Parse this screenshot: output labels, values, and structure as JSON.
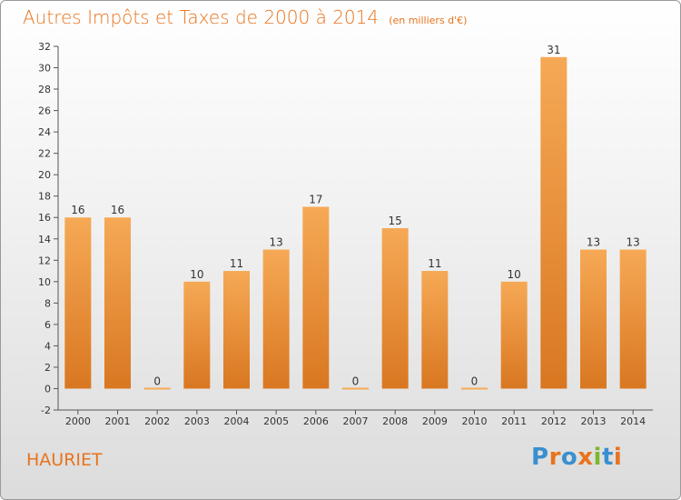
{
  "title": "Autres Impôts et Taxes de 2000 à 2014",
  "subtitle": "(en milliers d'€)",
  "commune": "HAURIET",
  "logo": {
    "text": "Proxiti",
    "letters": [
      "P",
      "r",
      "o",
      "x",
      "i",
      "t",
      "i"
    ],
    "colors": [
      "#3a8fd0",
      "#e8731d",
      "#3a8fd0",
      "#e8731d",
      "#7cb82f",
      "#3a8fd0",
      "#e8731d"
    ]
  },
  "colors": {
    "accent": "#e8731d",
    "bar_light": "#f6a955",
    "bar_dark": "#d97721",
    "axis": "#555555"
  },
  "chart_data": {
    "type": "bar",
    "title": "Autres Impôts et Taxes de 2000 à 2014",
    "subtitle": "(en milliers d'€)",
    "xlabel": "",
    "ylabel": "",
    "categories": [
      "2000",
      "2001",
      "2002",
      "2003",
      "2004",
      "2005",
      "2006",
      "2007",
      "2008",
      "2009",
      "2010",
      "2011",
      "2012",
      "2013",
      "2014"
    ],
    "values": [
      16,
      16,
      0,
      10,
      11,
      13,
      17,
      0,
      15,
      11,
      0,
      10,
      31,
      13,
      13
    ],
    "value_labels": [
      "16",
      "16",
      "0",
      "10",
      "11",
      "13",
      "17",
      "0",
      "15",
      "11",
      "0",
      "10",
      "31",
      "13",
      "13"
    ],
    "ylim": [
      -2,
      32
    ],
    "yticks": [
      -2,
      0,
      2,
      4,
      6,
      8,
      10,
      12,
      14,
      16,
      18,
      20,
      22,
      24,
      26,
      28,
      30,
      32
    ],
    "grid": false,
    "legend": "none"
  }
}
